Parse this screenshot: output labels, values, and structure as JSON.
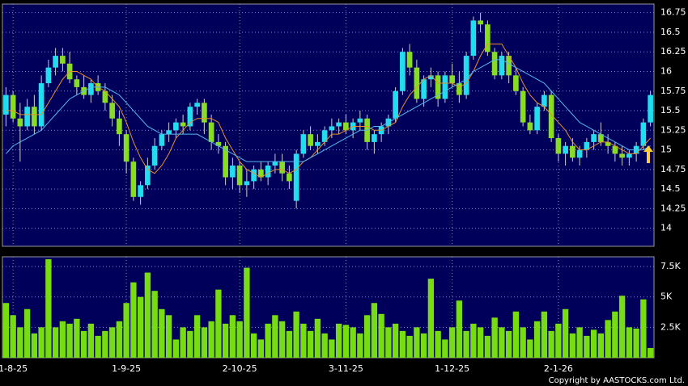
{
  "chart_data": [
    {
      "type": "candlestick",
      "up_color": "#22ddee",
      "down_color": "#88dd22",
      "ylim": [
        13.77,
        16.86
      ],
      "yticks": [
        14,
        14.25,
        14.5,
        14.75,
        15,
        15.25,
        15.5,
        15.75,
        16,
        16.25,
        16.5,
        16.75
      ],
      "grid": true,
      "values": [
        [
          15.45,
          15.8,
          15.3,
          15.7
        ],
        [
          15.7,
          15.75,
          15.35,
          15.4
        ],
        [
          15.4,
          15.6,
          14.85,
          15.3
        ],
        [
          15.3,
          15.65,
          15.25,
          15.55
        ],
        [
          15.55,
          15.7,
          15.2,
          15.3
        ],
        [
          15.3,
          15.95,
          15.25,
          15.85
        ],
        [
          15.85,
          16.15,
          15.8,
          16.05
        ],
        [
          16.05,
          16.3,
          15.95,
          16.2
        ],
        [
          16.2,
          16.3,
          16.0,
          16.1
        ],
        [
          16.1,
          16.25,
          15.85,
          15.9
        ],
        [
          15.9,
          15.95,
          15.7,
          15.8
        ],
        [
          15.8,
          15.95,
          15.65,
          15.7
        ],
        [
          15.7,
          15.9,
          15.6,
          15.85
        ],
        [
          15.85,
          15.95,
          15.7,
          15.75
        ],
        [
          15.75,
          15.85,
          15.5,
          15.6
        ],
        [
          15.6,
          15.7,
          15.3,
          15.4
        ],
        [
          15.4,
          15.5,
          15.05,
          15.2
        ],
        [
          15.2,
          15.25,
          14.7,
          14.85
        ],
        [
          14.85,
          14.9,
          14.35,
          14.4
        ],
        [
          14.4,
          14.6,
          14.3,
          14.55
        ],
        [
          14.55,
          14.9,
          14.5,
          14.8
        ],
        [
          14.8,
          15.15,
          14.75,
          15.05
        ],
        [
          15.05,
          15.25,
          15.0,
          15.2
        ],
        [
          15.2,
          15.35,
          15.1,
          15.25
        ],
        [
          15.25,
          15.4,
          15.15,
          15.35
        ],
        [
          15.35,
          15.45,
          15.2,
          15.3
        ],
        [
          15.3,
          15.6,
          15.25,
          15.55
        ],
        [
          15.55,
          15.65,
          15.45,
          15.6
        ],
        [
          15.6,
          15.65,
          15.2,
          15.35
        ],
        [
          15.35,
          15.45,
          15.0,
          15.1
        ],
        [
          15.1,
          15.2,
          14.95,
          15.05
        ],
        [
          15.05,
          15.1,
          14.55,
          14.65
        ],
        [
          14.65,
          14.9,
          14.5,
          14.8
        ],
        [
          14.8,
          14.85,
          14.45,
          14.55
        ],
        [
          14.55,
          14.75,
          14.4,
          14.6
        ],
        [
          14.6,
          14.8,
          14.5,
          14.75
        ],
        [
          14.75,
          14.85,
          14.6,
          14.65
        ],
        [
          14.65,
          14.85,
          14.55,
          14.8
        ],
        [
          14.8,
          14.95,
          14.7,
          14.85
        ],
        [
          14.85,
          14.95,
          14.6,
          14.7
        ],
        [
          14.7,
          14.8,
          14.5,
          14.6
        ],
        [
          14.35,
          15.0,
          14.25,
          14.95
        ],
        [
          14.95,
          15.25,
          14.9,
          15.2
        ],
        [
          15.2,
          15.3,
          15.0,
          15.05
        ],
        [
          15.05,
          15.2,
          14.95,
          15.1
        ],
        [
          15.1,
          15.3,
          15.05,
          15.25
        ],
        [
          15.25,
          15.4,
          15.15,
          15.3
        ],
        [
          15.3,
          15.4,
          15.2,
          15.35
        ],
        [
          15.35,
          15.45,
          15.2,
          15.25
        ],
        [
          15.25,
          15.4,
          15.15,
          15.35
        ],
        [
          15.35,
          15.5,
          15.25,
          15.4
        ],
        [
          15.4,
          15.45,
          15.0,
          15.1
        ],
        [
          15.1,
          15.25,
          14.95,
          15.2
        ],
        [
          15.2,
          15.35,
          15.1,
          15.3
        ],
        [
          15.3,
          15.45,
          15.2,
          15.4
        ],
        [
          15.4,
          15.8,
          15.35,
          15.75
        ],
        [
          15.75,
          16.3,
          15.7,
          16.25
        ],
        [
          16.25,
          16.35,
          15.95,
          16.05
        ],
        [
          16.05,
          16.15,
          15.6,
          15.65
        ],
        [
          15.65,
          15.95,
          15.55,
          15.9
        ],
        [
          15.9,
          16.05,
          15.8,
          15.95
        ],
        [
          15.95,
          16.0,
          15.55,
          15.65
        ],
        [
          15.65,
          16.0,
          15.6,
          15.95
        ],
        [
          15.95,
          16.1,
          15.8,
          15.85
        ],
        [
          15.85,
          16.0,
          15.6,
          15.7
        ],
        [
          15.7,
          16.25,
          15.65,
          16.2
        ],
        [
          16.2,
          16.7,
          16.15,
          16.65
        ],
        [
          16.65,
          16.75,
          16.5,
          16.6
        ],
        [
          16.6,
          16.65,
          16.2,
          16.25
        ],
        [
          16.25,
          16.3,
          15.9,
          15.95
        ],
        [
          15.95,
          16.25,
          15.9,
          16.2
        ],
        [
          16.2,
          16.25,
          15.85,
          15.95
        ],
        [
          15.95,
          16.05,
          15.7,
          15.75
        ],
        [
          15.75,
          15.8,
          15.3,
          15.35
        ],
        [
          15.35,
          15.45,
          15.2,
          15.25
        ],
        [
          15.25,
          15.6,
          15.2,
          15.55
        ],
        [
          15.55,
          15.75,
          15.5,
          15.7
        ],
        [
          15.7,
          15.75,
          15.1,
          15.15
        ],
        [
          15.15,
          15.2,
          14.85,
          14.95
        ],
        [
          14.95,
          15.1,
          14.8,
          15.05
        ],
        [
          15.05,
          15.15,
          14.85,
          14.9
        ],
        [
          14.9,
          15.05,
          14.8,
          15.0
        ],
        [
          15.0,
          15.15,
          14.9,
          15.1
        ],
        [
          15.1,
          15.25,
          15.0,
          15.2
        ],
        [
          15.2,
          15.35,
          15.05,
          15.1
        ],
        [
          15.1,
          15.2,
          14.95,
          15.05
        ],
        [
          15.05,
          15.1,
          14.85,
          14.95
        ],
        [
          14.95,
          15.05,
          14.8,
          14.9
        ],
        [
          14.9,
          15.0,
          14.8,
          14.95
        ],
        [
          14.95,
          15.1,
          14.85,
          15.05
        ],
        [
          15.05,
          15.4,
          15.0,
          15.35
        ],
        [
          15.35,
          15.75,
          15.3,
          15.7
        ]
      ],
      "lines": [
        {
          "color": "#e8902a",
          "values": [
            15.5,
            15.5,
            15.45,
            15.45,
            15.45,
            15.45,
            15.6,
            15.75,
            15.9,
            16.0,
            16.0,
            15.95,
            15.9,
            15.8,
            15.75,
            15.65,
            15.55,
            15.35,
            15.1,
            14.9,
            14.75,
            14.7,
            14.8,
            14.95,
            15.15,
            15.25,
            15.35,
            15.4,
            15.4,
            15.4,
            15.35,
            15.15,
            15.0,
            14.85,
            14.75,
            14.7,
            14.65,
            14.7,
            14.75,
            14.75,
            14.7,
            14.75,
            14.85,
            14.9,
            15.0,
            15.1,
            15.2,
            15.2,
            15.25,
            15.3,
            15.3,
            15.3,
            15.25,
            15.25,
            15.3,
            15.35,
            15.55,
            15.7,
            15.8,
            15.9,
            15.95,
            15.85,
            15.85,
            15.85,
            15.8,
            15.85,
            16.0,
            16.2,
            16.35,
            16.35,
            16.35,
            16.2,
            16.05,
            15.85,
            15.7,
            15.6,
            15.55,
            15.45,
            15.35,
            15.25,
            15.1,
            15.0,
            15.0,
            15.05,
            15.1,
            15.1,
            15.05,
            15.0,
            14.95,
            14.95,
            15.05,
            15.15
          ]
        },
        {
          "color": "#55b8ee",
          "values": [
            14.95,
            15.05,
            15.1,
            15.15,
            15.2,
            15.25,
            15.35,
            15.45,
            15.55,
            15.65,
            15.7,
            15.75,
            15.8,
            15.8,
            15.8,
            15.75,
            15.7,
            15.6,
            15.5,
            15.4,
            15.3,
            15.25,
            15.2,
            15.2,
            15.2,
            15.2,
            15.2,
            15.2,
            15.15,
            15.1,
            15.05,
            15.0,
            14.95,
            14.9,
            14.85,
            14.85,
            14.85,
            14.85,
            14.85,
            14.85,
            14.85,
            14.85,
            14.85,
            14.9,
            14.95,
            15.0,
            15.05,
            15.1,
            15.15,
            15.2,
            15.25,
            15.25,
            15.3,
            15.3,
            15.35,
            15.4,
            15.45,
            15.5,
            15.55,
            15.6,
            15.65,
            15.7,
            15.75,
            15.8,
            15.85,
            15.9,
            16.0,
            16.05,
            16.1,
            16.15,
            16.15,
            16.1,
            16.05,
            16.0,
            15.95,
            15.9,
            15.85,
            15.75,
            15.65,
            15.55,
            15.45,
            15.35,
            15.3,
            15.25,
            15.2,
            15.15,
            15.1,
            15.05,
            15.0,
            15.0,
            15.0,
            15.05
          ]
        }
      ]
    },
    {
      "type": "bar",
      "color": "#77dd11",
      "ylim": [
        0,
        8300
      ],
      "yticks": [
        {
          "value": 2500,
          "label": "2.5K"
        },
        {
          "value": 5000,
          "label": "5K"
        },
        {
          "value": 7500,
          "label": "7.5K"
        }
      ],
      "grid": true,
      "categories": [
        null,
        "1-8-25",
        null,
        null,
        null,
        null,
        null,
        null,
        null,
        null,
        null,
        null,
        null,
        null,
        null,
        null,
        null,
        "1-9-25",
        null,
        null,
        null,
        null,
        null,
        null,
        null,
        null,
        null,
        null,
        null,
        null,
        null,
        null,
        null,
        "2-10-25",
        null,
        null,
        null,
        null,
        null,
        null,
        null,
        null,
        null,
        null,
        null,
        null,
        null,
        null,
        "3-11-25",
        null,
        null,
        null,
        null,
        null,
        null,
        null,
        null,
        null,
        null,
        null,
        null,
        null,
        null,
        "1-12-25",
        null,
        null,
        null,
        null,
        null,
        null,
        null,
        null,
        null,
        null,
        null,
        null,
        null,
        null,
        "2-1-26",
        null,
        null,
        null,
        null,
        null,
        null,
        null,
        null,
        null,
        null,
        null,
        null,
        null
      ],
      "values": [
        4500,
        3500,
        2500,
        4000,
        2000,
        2500,
        8100,
        2500,
        3000,
        2800,
        3200,
        2200,
        2800,
        1800,
        2200,
        2500,
        3000,
        4500,
        6200,
        5000,
        7000,
        5500,
        4000,
        3500,
        1500,
        2500,
        2200,
        3500,
        2500,
        3000,
        5600,
        2800,
        3500,
        3000,
        7400,
        2000,
        1500,
        2800,
        3500,
        3000,
        2200,
        3800,
        2800,
        2200,
        3200,
        2000,
        1500,
        2800,
        2700,
        2500,
        2000,
        3500,
        4500,
        3600,
        2500,
        2800,
        2200,
        1800,
        2500,
        2000,
        6500,
        2200,
        1500,
        2500,
        4700,
        2200,
        2800,
        2500,
        1800,
        3300,
        2500,
        2200,
        3800,
        2500,
        1500,
        3000,
        3800,
        2200,
        2800,
        4000,
        2000,
        2500,
        1800,
        2300,
        2000,
        3100,
        3800,
        5100,
        2500,
        2400,
        4800,
        800
      ]
    }
  ],
  "copyright": "Copyright by AASTOCKS.com Ltd."
}
